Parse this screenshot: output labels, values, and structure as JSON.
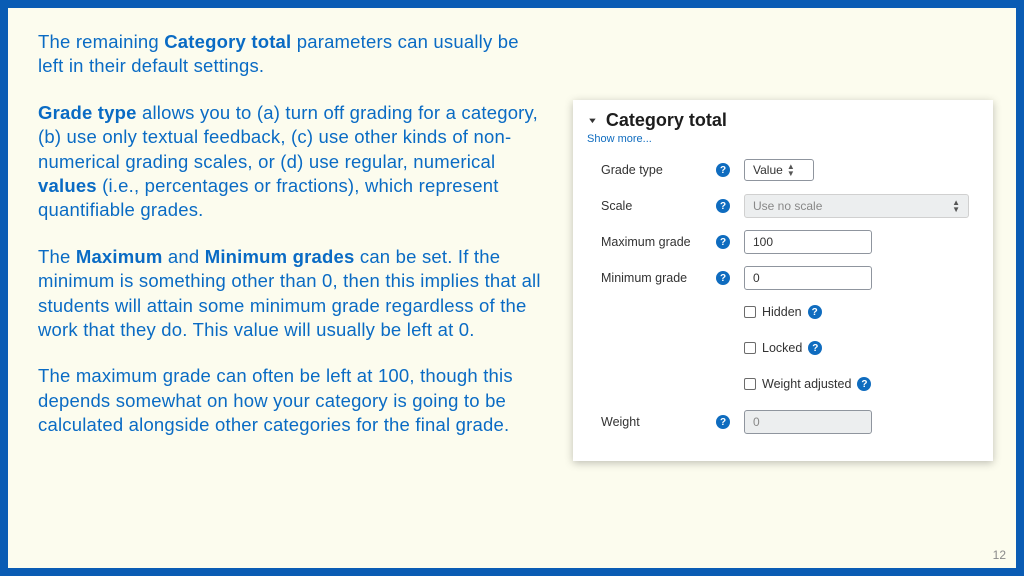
{
  "slide": {
    "border_color": "#0a5cb4",
    "background_color": "#fcfcee",
    "text_color": "#0a6bc4",
    "page_number": "12"
  },
  "text": {
    "p1_a": "The remaining ",
    "p1_b": "Category total",
    "p1_c": " parameters can usually be left in their default settings.",
    "p2_a": "Grade type",
    "p2_b": " allows you to (a) turn off grading for a category, (b) use only textual feedback, (c) use other kinds of non-numerical grading scales, or (d) use regular, numerical ",
    "p2_c": "values",
    "p2_d": " (i.e., percentages or fractions), which represent quantifiable grades.",
    "p3_a": "The ",
    "p3_b": "Maximum",
    "p3_c": " and ",
    "p3_d": "Minimum grades",
    "p3_e": " can be set. If the minimum is something other than 0, then this implies that all students will attain some minimum grade regardless of the work that they do. This value will usually be left at 0.",
    "p4": "The maximum grade can often be left at 100, though this depends somewhat on how your category is going to be calculated alongside other categories for the final grade."
  },
  "panel": {
    "title": "Category total",
    "show_more": "Show more...",
    "link_color": "#0f6cbf",
    "help_bg": "#0f6cbf",
    "fields": {
      "grade_type": {
        "label": "Grade type",
        "value": "Value"
      },
      "scale": {
        "label": "Scale",
        "value": "Use no scale"
      },
      "max_grade": {
        "label": "Maximum grade",
        "value": "100"
      },
      "min_grade": {
        "label": "Minimum grade",
        "value": "0"
      },
      "hidden": {
        "label": "Hidden"
      },
      "locked": {
        "label": "Locked"
      },
      "weight_adj": {
        "label": "Weight adjusted"
      },
      "weight": {
        "label": "Weight",
        "value": "0"
      }
    }
  }
}
